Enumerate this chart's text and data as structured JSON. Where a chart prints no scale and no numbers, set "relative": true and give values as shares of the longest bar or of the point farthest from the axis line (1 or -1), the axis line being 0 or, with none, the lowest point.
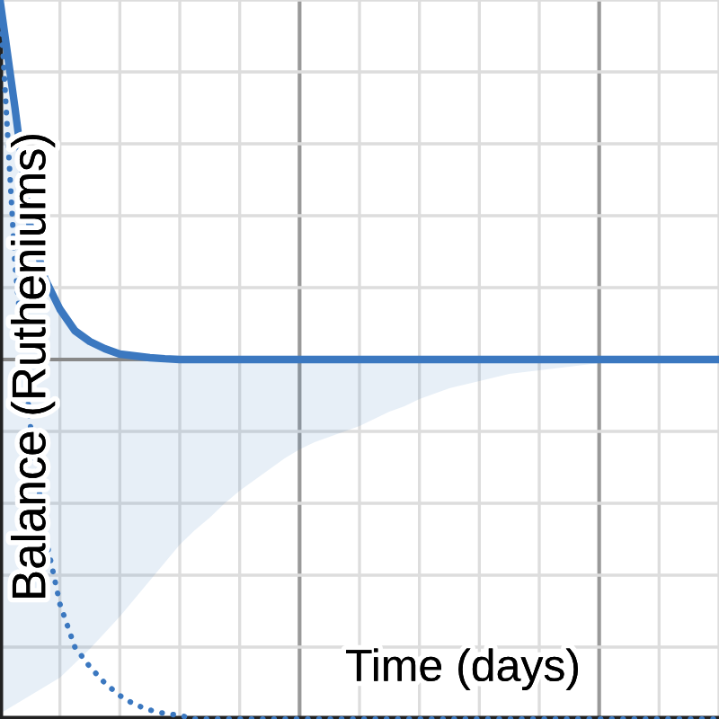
{
  "chart_data": {
    "type": "line",
    "relative": true,
    "xlabel": "Time (days)",
    "ylabel": "Balance (Rutheniums)",
    "categories": [
      null,
      null,
      null,
      null,
      null,
      null,
      null,
      null,
      null,
      null,
      null,
      null,
      null,
      null,
      null,
      null,
      null,
      null,
      null,
      null,
      null,
      null,
      null,
      null,
      null,
      null,
      null,
      null,
      null,
      null,
      null,
      null,
      null,
      null,
      null,
      null,
      null,
      null,
      null,
      null,
      null,
      null,
      null,
      null,
      null,
      null,
      null,
      null,
      null
    ],
    "series": [
      {
        "color": "#3b78c0",
        "line_style": "solid",
        "values": [
          1.0,
          0.7,
          0.375,
          0.225,
          0.14,
          0.08,
          0.05,
          0.03,
          0.015,
          0.01,
          0.005,
          0.002,
          0,
          0,
          0,
          0,
          0,
          0,
          0,
          0,
          0,
          0,
          0,
          0,
          0,
          0,
          0,
          0,
          0,
          0,
          0,
          0,
          0,
          0,
          0,
          0,
          0,
          0,
          0,
          0,
          0,
          0,
          0,
          0,
          0,
          0,
          0,
          0,
          0
        ],
        "upper": [
          1.0,
          0.7,
          0.375,
          0.225,
          0.14,
          0.08,
          0.05,
          0.03,
          0.015,
          0.01,
          0.005,
          0.002,
          0,
          0,
          0,
          0,
          0,
          0,
          0,
          0,
          0,
          0,
          0,
          0,
          0,
          0,
          0,
          0,
          0,
          0,
          0,
          0,
          0,
          0,
          0,
          0,
          0,
          0,
          0,
          0,
          0,
          0,
          0,
          0,
          0,
          0,
          0,
          0,
          0
        ],
        "lower": [
          -0.985,
          -0.96,
          -0.935,
          -0.91,
          -0.885,
          -0.845,
          -0.805,
          -0.76,
          -0.715,
          -0.665,
          -0.615,
          -0.565,
          -0.515,
          -0.475,
          -0.44,
          -0.4,
          -0.365,
          -0.335,
          -0.305,
          -0.275,
          -0.25,
          -0.23,
          -0.215,
          -0.2,
          -0.185,
          -0.165,
          -0.145,
          -0.13,
          -0.11,
          -0.095,
          -0.08,
          -0.07,
          -0.06,
          -0.05,
          -0.04,
          -0.035,
          -0.03,
          -0.025,
          -0.02,
          -0.015,
          -0.01,
          -0.01,
          -0.005,
          -0.005,
          0,
          0,
          0,
          0,
          0
        ]
      },
      {
        "color": "#3b78c0",
        "line_style": "dotted",
        "values": [
          1.0,
          0.265,
          -0.175,
          -0.485,
          -0.68,
          -0.8,
          -0.855,
          -0.9,
          -0.935,
          -0.96,
          -0.975,
          -0.985,
          -0.99,
          -1,
          -1,
          -1,
          -1,
          -1,
          -1,
          -1,
          -1,
          -1,
          -1,
          -1,
          -1,
          -1,
          -1,
          -1,
          -1,
          -1,
          -1,
          -1,
          -1,
          -1,
          -1,
          -1,
          -1,
          -1,
          -1,
          -1,
          -1,
          -1,
          -1,
          -1,
          -1,
          -1,
          -1,
          -1,
          -1
        ]
      }
    ],
    "grid": true
  }
}
